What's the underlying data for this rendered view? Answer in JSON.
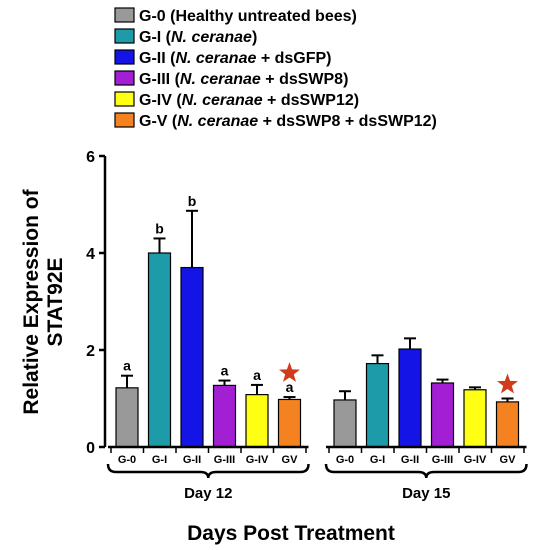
{
  "chart_data": {
    "type": "bar",
    "ylabel_lines": [
      "Relative Expression of",
      "STAT92E"
    ],
    "xlabel": "Days Post Treatment",
    "ylim": [
      0,
      6
    ],
    "yticks": [
      "0",
      "2",
      "4",
      "6"
    ],
    "legend": [
      {
        "name": "G-0",
        "detail": "(Healthy untreated bees)",
        "color": "#999999"
      },
      {
        "name": "G-I",
        "detail": "(N. ceranae)",
        "color": "#1E9BA8"
      },
      {
        "name": "G-II",
        "detail": "(N. ceranae + dsGFP)",
        "color": "#1414E6"
      },
      {
        "name": "G-III",
        "detail": "(N. ceranae + dsSWP8)",
        "color": "#A21FD4"
      },
      {
        "name": "G-IV",
        "detail": "(N. ceranae + dsSWP12)",
        "color": "#FFFF14"
      },
      {
        "name": "G-V",
        "detail": "(N. ceranae + dsSWP8 + dsSWP12)",
        "color": "#F58220"
      }
    ],
    "groups": [
      {
        "label": "Day 12",
        "bars": [
          {
            "category": "G-0",
            "value": 1.22,
            "error": 0.25,
            "sig": "a",
            "color": "#999999"
          },
          {
            "category": "G-I",
            "value": 4.0,
            "error": 0.3,
            "sig": "b",
            "color": "#1E9BA8"
          },
          {
            "category": "G-II",
            "value": 3.7,
            "error": 1.17,
            "sig": "b",
            "color": "#1414E6"
          },
          {
            "category": "G-III",
            "value": 1.27,
            "error": 0.1,
            "sig": "a",
            "color": "#A21FD4"
          },
          {
            "category": "G-IV",
            "value": 1.08,
            "error": 0.2,
            "sig": "a",
            "color": "#FFFF14"
          },
          {
            "category": "GV",
            "value": 0.98,
            "error": 0.05,
            "sig": "a",
            "color": "#F58220",
            "star": true
          }
        ]
      },
      {
        "label": "Day 15",
        "bars": [
          {
            "category": "G-0",
            "value": 0.97,
            "error": 0.18,
            "sig": "",
            "color": "#999999"
          },
          {
            "category": "G-I",
            "value": 1.72,
            "error": 0.17,
            "sig": "",
            "color": "#1E9BA8"
          },
          {
            "category": "G-II",
            "value": 2.02,
            "error": 0.22,
            "sig": "",
            "color": "#1414E6"
          },
          {
            "category": "G-III",
            "value": 1.32,
            "error": 0.07,
            "sig": "",
            "color": "#A21FD4"
          },
          {
            "category": "G-IV",
            "value": 1.18,
            "error": 0.05,
            "sig": "",
            "color": "#FFFF14"
          },
          {
            "category": "GV",
            "value": 0.93,
            "error": 0.07,
            "sig": "",
            "color": "#F58220",
            "star": true
          }
        ]
      }
    ],
    "star_color": "#D13B1A",
    "grid": false
  }
}
